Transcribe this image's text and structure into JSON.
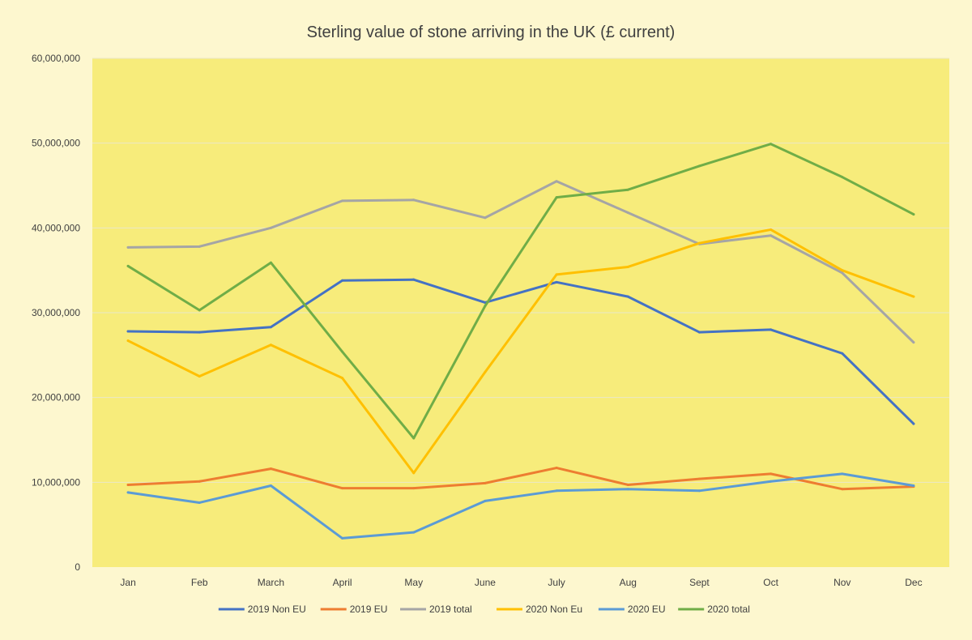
{
  "chart_data": {
    "type": "line",
    "title": "Sterling value of stone arriving in the UK (£ current)",
    "xlabel": "",
    "ylabel": "",
    "categories": [
      "Jan",
      "Feb",
      "March",
      "April",
      "May",
      "June",
      "July",
      "Aug",
      "Sept",
      "Oct",
      "Nov",
      "Dec"
    ],
    "ylim": [
      0,
      60000000
    ],
    "yticks": [
      0,
      10000000,
      20000000,
      30000000,
      40000000,
      50000000,
      60000000
    ],
    "ytick_labels": [
      "0",
      "10,000,000",
      "20,000,000",
      "30,000,000",
      "40,000,000",
      "50,000,000",
      "60,000,000"
    ],
    "grid": "horizontal",
    "legend_position": "bottom",
    "colors": {
      "background": "#fdf7cf",
      "plot_area": "#f7ec7b",
      "gridline": "#eae7c8"
    },
    "series": [
      {
        "name": "2019 Non EU",
        "color": "#4472c4",
        "values": [
          27800000,
          27700000,
          28300000,
          33800000,
          33900000,
          31200000,
          33600000,
          31900000,
          27700000,
          28000000,
          25200000,
          16900000
        ]
      },
      {
        "name": "2019 EU",
        "color": "#ed7d31",
        "values": [
          9700000,
          10100000,
          11600000,
          9300000,
          9300000,
          9900000,
          11700000,
          9700000,
          10400000,
          11000000,
          9200000,
          9500000
        ]
      },
      {
        "name": "2019 total",
        "color": "#a5a5a5",
        "values": [
          37700000,
          37800000,
          40000000,
          43200000,
          43300000,
          41200000,
          45500000,
          41800000,
          38100000,
          39100000,
          34700000,
          26500000
        ]
      },
      {
        "name": "2020 Non Eu",
        "color": "#ffc000",
        "values": [
          26700000,
          22500000,
          26200000,
          22300000,
          11100000,
          23000000,
          34500000,
          35400000,
          38200000,
          39800000,
          35000000,
          31900000
        ]
      },
      {
        "name": "2020 EU",
        "color": "#5b9bd5",
        "values": [
          8800000,
          7600000,
          9600000,
          3400000,
          4100000,
          7800000,
          9000000,
          9200000,
          9000000,
          10100000,
          11000000,
          9600000
        ]
      },
      {
        "name": "2020 total",
        "color": "#70ad47",
        "values": [
          35500000,
          30300000,
          35900000,
          25400000,
          15200000,
          30800000,
          43600000,
          44500000,
          47300000,
          49900000,
          46000000,
          41600000
        ]
      }
    ]
  }
}
